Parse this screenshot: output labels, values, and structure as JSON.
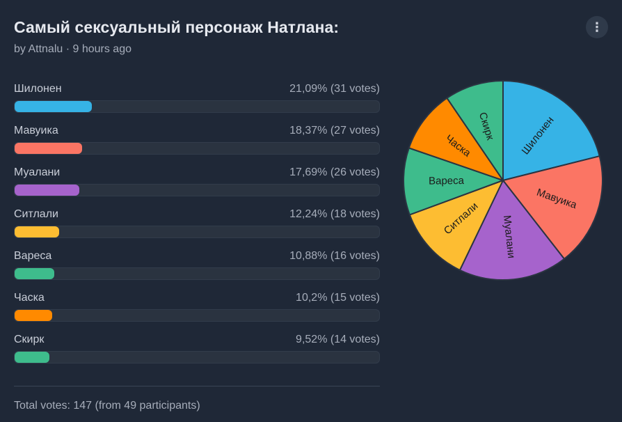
{
  "poll": {
    "title": "Самый сексуальный персонаж Натлана:",
    "meta": "by Attnalu · 9 hours ago",
    "menu_icon": "⋮",
    "total": "Total votes: 147 (from 49 participants)"
  },
  "chart_data": {
    "type": "pie",
    "categories": [
      "Шилонен",
      "Мавуика",
      "Муалани",
      "Ситлали",
      "Вареса",
      "Часка",
      "Скирк"
    ],
    "values": [
      31,
      27,
      26,
      18,
      16,
      15,
      14
    ],
    "percent_labels": [
      "21,09% (31 votes)",
      "18,37% (27 votes)",
      "17,69% (26 votes)",
      "12,24% (18 votes)",
      "10,88% (16 votes)",
      "10,2% (15 votes)",
      "9,52% (14 votes)"
    ],
    "percents": [
      21.09,
      18.37,
      17.69,
      12.24,
      10.88,
      10.2,
      9.52
    ],
    "colors": [
      "#36b3e6",
      "#fb7564",
      "#a663cc",
      "#fdbd32",
      "#3ebc8c",
      "#ff8a00",
      "#3ebc8c"
    ]
  }
}
